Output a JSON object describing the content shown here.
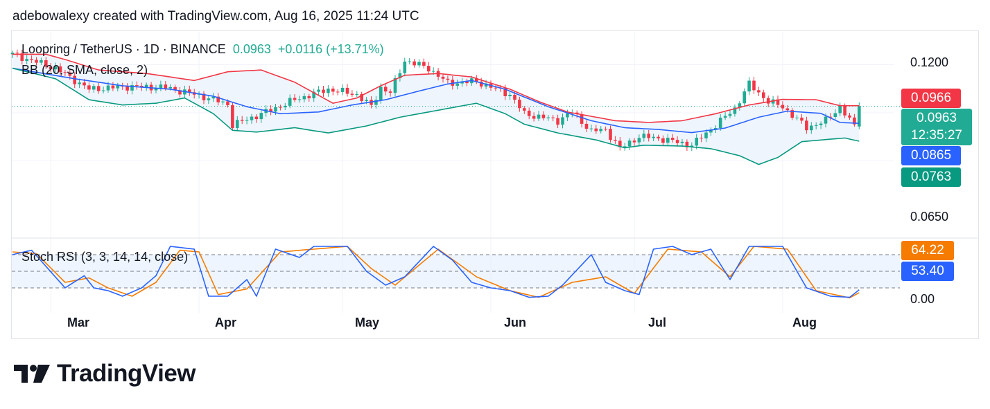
{
  "header": {
    "caption": "adebowalexy created with TradingView.com, Aug 16, 2025 11:24 UTC"
  },
  "legend": {
    "symbol": "Loopring / TetherUS · 1D · BINANCE",
    "price": "0.0963",
    "change": "+0.0116 (+13.71%)",
    "indicator": "BB (20, SMA, close, 2)",
    "oscillator": "Stoch RSI (3, 3, 14, 14, close)"
  },
  "price_axis": {
    "ticks": [
      "0.1200",
      "0.0650"
    ],
    "badges": {
      "upper": "0.0966",
      "last": "0.0963",
      "countdown": "12:35:27",
      "basis": "0.0865",
      "lower": "0.0763"
    }
  },
  "osc_axis": {
    "ticks": [
      "0.00"
    ],
    "badges": {
      "d": "64.22",
      "k": "53.40"
    }
  },
  "time_axis": {
    "months": [
      "Mar",
      "Apr",
      "May",
      "Jun",
      "Jul",
      "Aug"
    ]
  },
  "footer": {
    "brand": "TradingView"
  },
  "colors": {
    "up": "#22ab94",
    "down": "#f23645",
    "basis": "#2962ff",
    "upper_band": "#f23645",
    "lower_band": "#089981",
    "band_fill": "#eef5fc",
    "k_line": "#2962ff",
    "d_line": "#f57c00",
    "countdown_bg": "#22ab94",
    "basis_badge": "#2962ff",
    "lower_badge": "#089981",
    "d_badge": "#f57c00"
  },
  "chart_data": [
    {
      "type": "candlestick",
      "title": "Loopring / TetherUS · 1D · BINANCE",
      "x_range": [
        "2025-02-20",
        "2025-08-16"
      ],
      "ylim": [
        0.06,
        0.128
      ],
      "y_ticks": [
        0.12,
        0.065
      ],
      "last_close": 0.0963,
      "change": 0.0116,
      "change_pct": 13.71,
      "series": [
        {
          "name": "Upper",
          "key_points": [
            [
              "2025-02-27",
              0.126
            ],
            [
              "2025-03-03",
              0.123
            ],
            [
              "2025-03-10",
              0.117
            ],
            [
              "2025-03-20",
              0.115
            ],
            [
              "2025-03-30",
              0.111
            ],
            [
              "2025-04-06",
              0.116
            ],
            [
              "2025-04-13",
              0.117
            ],
            [
              "2025-04-20",
              0.11
            ],
            [
              "2025-04-28",
              0.098
            ],
            [
              "2025-05-03",
              0.101
            ],
            [
              "2025-05-08",
              0.108
            ],
            [
              "2025-05-13",
              0.114
            ],
            [
              "2025-05-20",
              0.115
            ],
            [
              "2025-05-27",
              0.113
            ],
            [
              "2025-06-04",
              0.106
            ],
            [
              "2025-06-10",
              0.099
            ],
            [
              "2025-06-16",
              0.093
            ],
            [
              "2025-06-20",
              0.091
            ],
            [
              "2025-06-26",
              0.088
            ],
            [
              "2025-07-03",
              0.087
            ],
            [
              "2025-07-10",
              0.088
            ],
            [
              "2025-07-17",
              0.092
            ],
            [
              "2025-07-24",
              0.097
            ],
            [
              "2025-07-31",
              0.1002
            ],
            [
              "2025-08-07",
              0.1
            ],
            [
              "2025-08-12",
              0.0966
            ]
          ]
        },
        {
          "name": "Basis",
          "key_points": [
            [
              "2025-02-20",
              0.118
            ],
            [
              "2025-03-05",
              0.112
            ],
            [
              "2025-03-15",
              0.108
            ],
            [
              "2025-03-25",
              0.106
            ],
            [
              "2025-04-03",
              0.102
            ],
            [
              "2025-04-10",
              0.096
            ],
            [
              "2025-04-17",
              0.092
            ],
            [
              "2025-04-25",
              0.093
            ],
            [
              "2025-05-02",
              0.097
            ],
            [
              "2025-05-09",
              0.1
            ],
            [
              "2025-05-16",
              0.105
            ],
            [
              "2025-05-22",
              0.109
            ],
            [
              "2025-05-27",
              0.111
            ],
            [
              "2025-06-03",
              0.106
            ],
            [
              "2025-06-12",
              0.096
            ],
            [
              "2025-06-21",
              0.088
            ],
            [
              "2025-06-28",
              0.084
            ],
            [
              "2025-07-05",
              0.083
            ],
            [
              "2025-07-12",
              0.0812
            ],
            [
              "2025-07-19",
              0.0838
            ],
            [
              "2025-07-26",
              0.09
            ],
            [
              "2025-08-01",
              0.0935
            ],
            [
              "2025-08-08",
              0.0922
            ],
            [
              "2025-08-12",
              0.087
            ],
            [
              "2025-08-16",
              0.0865
            ]
          ]
        },
        {
          "name": "Lower",
          "key_points": [
            [
              "2025-02-20",
              0.118
            ],
            [
              "2025-03-01",
              0.112
            ],
            [
              "2025-03-08",
              0.1
            ],
            [
              "2025-03-15",
              0.097
            ],
            [
              "2025-03-22",
              0.098
            ],
            [
              "2025-03-28",
              0.101
            ],
            [
              "2025-04-03",
              0.092
            ],
            [
              "2025-04-07",
              0.0825
            ],
            [
              "2025-04-12",
              0.0815
            ],
            [
              "2025-04-20",
              0.084
            ],
            [
              "2025-04-27",
              0.081
            ],
            [
              "2025-05-05",
              0.085
            ],
            [
              "2025-05-12",
              0.09
            ],
            [
              "2025-05-20",
              0.094
            ],
            [
              "2025-05-28",
              0.098
            ],
            [
              "2025-06-03",
              0.092
            ],
            [
              "2025-06-07",
              0.086
            ],
            [
              "2025-06-14",
              0.081
            ],
            [
              "2025-06-22",
              0.077
            ],
            [
              "2025-06-28",
              0.0725
            ],
            [
              "2025-07-02",
              0.074
            ],
            [
              "2025-07-10",
              0.0735
            ],
            [
              "2025-07-16",
              0.072
            ],
            [
              "2025-07-22",
              0.068
            ],
            [
              "2025-07-26",
              0.063
            ],
            [
              "2025-07-30",
              0.067
            ],
            [
              "2025-08-04",
              0.076
            ],
            [
              "2025-08-09",
              0.0772
            ],
            [
              "2025-08-13",
              0.0781
            ],
            [
              "2025-08-16",
              0.0763
            ]
          ]
        }
      ],
      "price_path": [
        [
          "2025-02-20",
          0.126
        ],
        [
          "2025-03-01",
          0.118
        ],
        [
          "2025-03-08",
          0.106
        ],
        [
          "2025-03-16",
          0.1075
        ],
        [
          "2025-03-24",
          0.107
        ],
        [
          "2025-03-31",
          0.1025
        ],
        [
          "2025-04-06",
          0.0975
        ],
        [
          "2025-04-07",
          0.0855
        ],
        [
          "2025-04-14",
          0.093
        ],
        [
          "2025-04-20",
          0.1
        ],
        [
          "2025-04-27",
          0.106
        ],
        [
          "2025-05-03",
          0.103
        ],
        [
          "2025-05-06",
          0.096
        ],
        [
          "2025-05-08",
          0.107
        ],
        [
          "2025-05-10",
          0.104
        ],
        [
          "2025-05-13",
          0.1225
        ],
        [
          "2025-05-18",
          0.118
        ],
        [
          "2025-05-22",
          0.1095
        ],
        [
          "2025-05-28",
          0.1105
        ],
        [
          "2025-06-04",
          0.103
        ],
        [
          "2025-06-07",
          0.092
        ],
        [
          "2025-06-14",
          0.088
        ],
        [
          "2025-06-17",
          0.093
        ],
        [
          "2025-06-21",
          0.082
        ],
        [
          "2025-06-24",
          0.083
        ],
        [
          "2025-06-27",
          0.072
        ],
        [
          "2025-07-01",
          0.079
        ],
        [
          "2025-07-05",
          0.078
        ],
        [
          "2025-07-12",
          0.074
        ],
        [
          "2025-07-17",
          0.0855
        ],
        [
          "2025-07-21",
          0.095
        ],
        [
          "2025-07-24",
          0.109
        ],
        [
          "2025-07-28",
          0.099
        ],
        [
          "2025-07-31",
          0.096
        ],
        [
          "2025-08-05",
          0.084
        ],
        [
          "2025-08-09",
          0.088
        ],
        [
          "2025-08-12",
          0.096
        ],
        [
          "2025-08-15",
          0.0847
        ],
        [
          "2025-08-16",
          0.0963
        ]
      ]
    },
    {
      "type": "line",
      "title": "Stoch RSI (3, 3, 14, 14, close)",
      "ylim": [
        0,
        100
      ],
      "y_ticks": [
        0
      ],
      "bands": [
        80,
        50,
        20
      ],
      "series": [
        {
          "name": "K",
          "last": 53.4,
          "key_points": [
            [
              "2025-02-20",
              80
            ],
            [
              "2025-02-24",
              88
            ],
            [
              "2025-03-03",
              20
            ],
            [
              "2025-03-07",
              42
            ],
            [
              "2025-03-09",
              20
            ],
            [
              "2025-03-12",
              15
            ],
            [
              "2025-03-15",
              5
            ],
            [
              "2025-03-19",
              20
            ],
            [
              "2025-03-22",
              42
            ],
            [
              "2025-03-25",
              95
            ],
            [
              "2025-03-30",
              90
            ],
            [
              "2025-04-02",
              5
            ],
            [
              "2025-04-06",
              5
            ],
            [
              "2025-04-10",
              35
            ],
            [
              "2025-04-12",
              5
            ],
            [
              "2025-04-16",
              90
            ],
            [
              "2025-04-21",
              75
            ],
            [
              "2025-04-24",
              95
            ],
            [
              "2025-05-01",
              95
            ],
            [
              "2025-05-05",
              50
            ],
            [
              "2025-05-09",
              25
            ],
            [
              "2025-05-13",
              40
            ],
            [
              "2025-05-19",
              95
            ],
            [
              "2025-05-23",
              70
            ],
            [
              "2025-05-27",
              30
            ],
            [
              "2025-05-31",
              20
            ],
            [
              "2025-06-04",
              15
            ],
            [
              "2025-06-08",
              3
            ],
            [
              "2025-06-12",
              5
            ],
            [
              "2025-06-15",
              25
            ],
            [
              "2025-06-21",
              80
            ],
            [
              "2025-06-24",
              30
            ],
            [
              "2025-06-28",
              15
            ],
            [
              "2025-07-01",
              8
            ],
            [
              "2025-07-04",
              90
            ],
            [
              "2025-07-08",
              95
            ],
            [
              "2025-07-12",
              80
            ],
            [
              "2025-07-16",
              90
            ],
            [
              "2025-07-20",
              35
            ],
            [
              "2025-07-24",
              95
            ],
            [
              "2025-07-31",
              95
            ],
            [
              "2025-08-05",
              20
            ],
            [
              "2025-08-10",
              5
            ],
            [
              "2025-08-14",
              3
            ],
            [
              "2025-08-18",
              30
            ],
            [
              "2025-08-22",
              80
            ],
            [
              "2025-08-28",
              53.4
            ]
          ]
        },
        {
          "name": "D",
          "last": 64.22,
          "key_points": [
            [
              "2025-02-20",
              85
            ],
            [
              "2025-02-25",
              82
            ],
            [
              "2025-03-03",
              30
            ],
            [
              "2025-03-08",
              38
            ],
            [
              "2025-03-12",
              20
            ],
            [
              "2025-03-17",
              5
            ],
            [
              "2025-03-22",
              30
            ],
            [
              "2025-03-27",
              88
            ],
            [
              "2025-03-31",
              85
            ],
            [
              "2025-04-04",
              8
            ],
            [
              "2025-04-10",
              18
            ],
            [
              "2025-04-17",
              85
            ],
            [
              "2025-04-24",
              90
            ],
            [
              "2025-05-01",
              95
            ],
            [
              "2025-05-06",
              55
            ],
            [
              "2025-05-11",
              25
            ],
            [
              "2025-05-20",
              90
            ],
            [
              "2025-05-28",
              40
            ],
            [
              "2025-06-04",
              15
            ],
            [
              "2025-06-10",
              3
            ],
            [
              "2025-06-17",
              30
            ],
            [
              "2025-06-24",
              40
            ],
            [
              "2025-06-30",
              10
            ],
            [
              "2025-07-07",
              90
            ],
            [
              "2025-07-14",
              85
            ],
            [
              "2025-07-20",
              40
            ],
            [
              "2025-07-25",
              95
            ],
            [
              "2025-08-01",
              90
            ],
            [
              "2025-08-07",
              15
            ],
            [
              "2025-08-14",
              2
            ],
            [
              "2025-08-20",
              30
            ],
            [
              "2025-08-25",
              80
            ],
            [
              "2025-08-28",
              64.22
            ]
          ]
        }
      ]
    }
  ]
}
